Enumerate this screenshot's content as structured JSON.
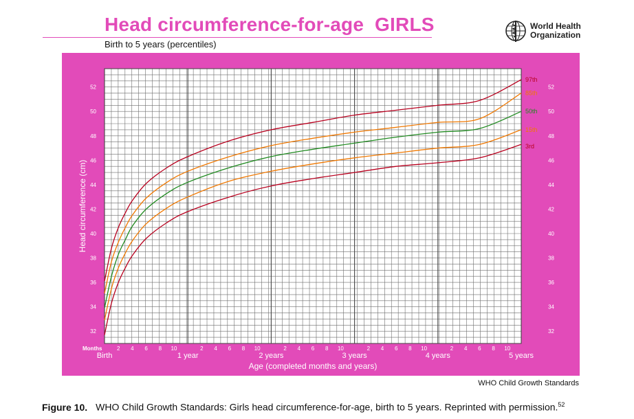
{
  "header": {
    "title": "Head circumference-for-age  GIRLS",
    "subtitle": "Birth to 5 years (percentiles)",
    "logo_text_line1": "World Health",
    "logo_text_line2": "Organization",
    "logo_icon": "who-emblem-icon"
  },
  "footer": {
    "source": "WHO Child Growth Standards",
    "caption_label": "Figure 10.",
    "caption_text": "WHO Child Growth Standards: Girls head circumference-for-age, birth to 5 years. Reprinted with permission.",
    "caption_ref": "52"
  },
  "colors": {
    "panel": "#e24bb9",
    "title": "#e24bb9",
    "grid": "#6d6d6d",
    "p97": "#b8001e",
    "p85": "#f07800",
    "p50": "#1f8a1f",
    "p15": "#f07800",
    "p3": "#b8001e"
  },
  "chart_data": {
    "type": "line",
    "title": "Head circumference-for-age  GIRLS",
    "subtitle": "Birth to 5 years (percentiles)",
    "ylabel": "Head circumference (cm)",
    "xlabel": "Age (completed months and years)",
    "x_unit_label": "Months",
    "ylim": [
      31,
      53.5
    ],
    "xlim": [
      0,
      60
    ],
    "y_ticks": [
      32,
      34,
      36,
      38,
      40,
      42,
      44,
      46,
      48,
      50,
      52
    ],
    "x_month_ticks": [
      2,
      4,
      6,
      8,
      10
    ],
    "x_year_labels": [
      {
        "month": 0,
        "label": "Birth"
      },
      {
        "month": 12,
        "label": "1 year"
      },
      {
        "month": 24,
        "label": "2 years"
      },
      {
        "month": 36,
        "label": "3 years"
      },
      {
        "month": 48,
        "label": "4 years"
      },
      {
        "month": 60,
        "label": "5 years"
      }
    ],
    "grid": true,
    "x": [
      0,
      1,
      2,
      3,
      4,
      6,
      9,
      12,
      18,
      24,
      30,
      36,
      42,
      48,
      54,
      60
    ],
    "series": [
      {
        "name": "97th",
        "color": "#b8001e",
        "values": [
          36.1,
          38.8,
          40.5,
          41.7,
          42.7,
          44.1,
          45.4,
          46.3,
          47.6,
          48.5,
          49.1,
          49.7,
          50.1,
          50.5,
          50.9,
          51.2
        ]
      },
      {
        "name": "85th",
        "color": "#f07800",
        "values": [
          35.1,
          37.7,
          39.3,
          40.5,
          41.5,
          42.9,
          44.2,
          45.1,
          46.3,
          47.2,
          47.8,
          48.3,
          48.7,
          49.1,
          49.4,
          49.7
        ]
      },
      {
        "name": "50th",
        "color": "#1f8a1f",
        "values": [
          33.9,
          36.5,
          38.3,
          39.5,
          40.6,
          42.0,
          43.3,
          44.2,
          45.4,
          46.3,
          46.9,
          47.4,
          47.9,
          48.3,
          48.6,
          48.9
        ]
      },
      {
        "name": "15th",
        "color": "#f07800",
        "values": [
          32.9,
          35.5,
          37.2,
          38.4,
          39.4,
          40.8,
          42.1,
          43.0,
          44.3,
          45.1,
          45.7,
          46.2,
          46.6,
          47.0,
          47.3,
          47.6
        ]
      },
      {
        "name": "3rd",
        "color": "#b8001e",
        "values": [
          31.7,
          34.3,
          36.0,
          37.2,
          38.2,
          39.6,
          40.9,
          41.8,
          43.0,
          43.9,
          44.5,
          45.0,
          45.5,
          45.8,
          46.2,
          46.5
        ]
      }
    ],
    "end_values": [
      52.6,
      51.5,
      50.0,
      48.5,
      47.3
    ],
    "legend": "line-ends"
  }
}
